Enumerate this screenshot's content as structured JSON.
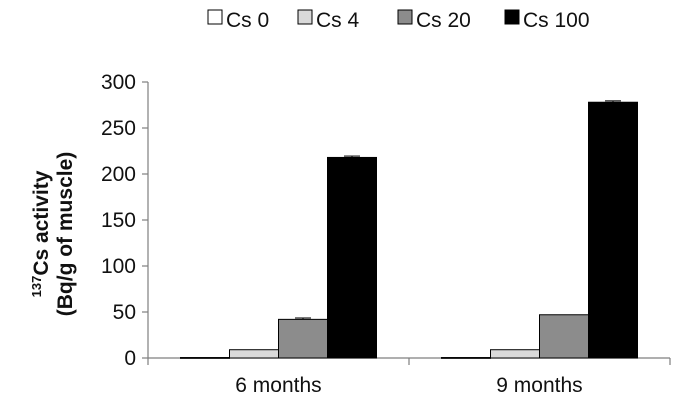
{
  "chart_data": {
    "type": "bar",
    "categories": [
      "6 months",
      "9 months"
    ],
    "series": [
      {
        "name": "Cs 0",
        "values": [
          0.5,
          0.5
        ],
        "color": "#ffffff"
      },
      {
        "name": "Cs 4",
        "values": [
          9,
          9
        ],
        "color": "#d9d9d9"
      },
      {
        "name": "Cs 20",
        "values": [
          42,
          47
        ],
        "color": "#8c8c8c"
      },
      {
        "name": "Cs 100",
        "values": [
          218,
          278
        ],
        "color": "#000000"
      }
    ],
    "errors": [
      [
        0,
        0
      ],
      [
        0,
        0
      ],
      [
        1.5,
        0
      ],
      [
        1.5,
        1.5
      ]
    ],
    "title": "",
    "xlabel": "",
    "ylabel_superscript": "137",
    "ylabel_line1": "Cs activity",
    "ylabel_line2": "(Bq/g of muscle)",
    "ylim": [
      0,
      300
    ],
    "yticks": [
      0,
      50,
      100,
      150,
      200,
      250,
      300
    ],
    "grid": false,
    "legend_position": "top"
  }
}
